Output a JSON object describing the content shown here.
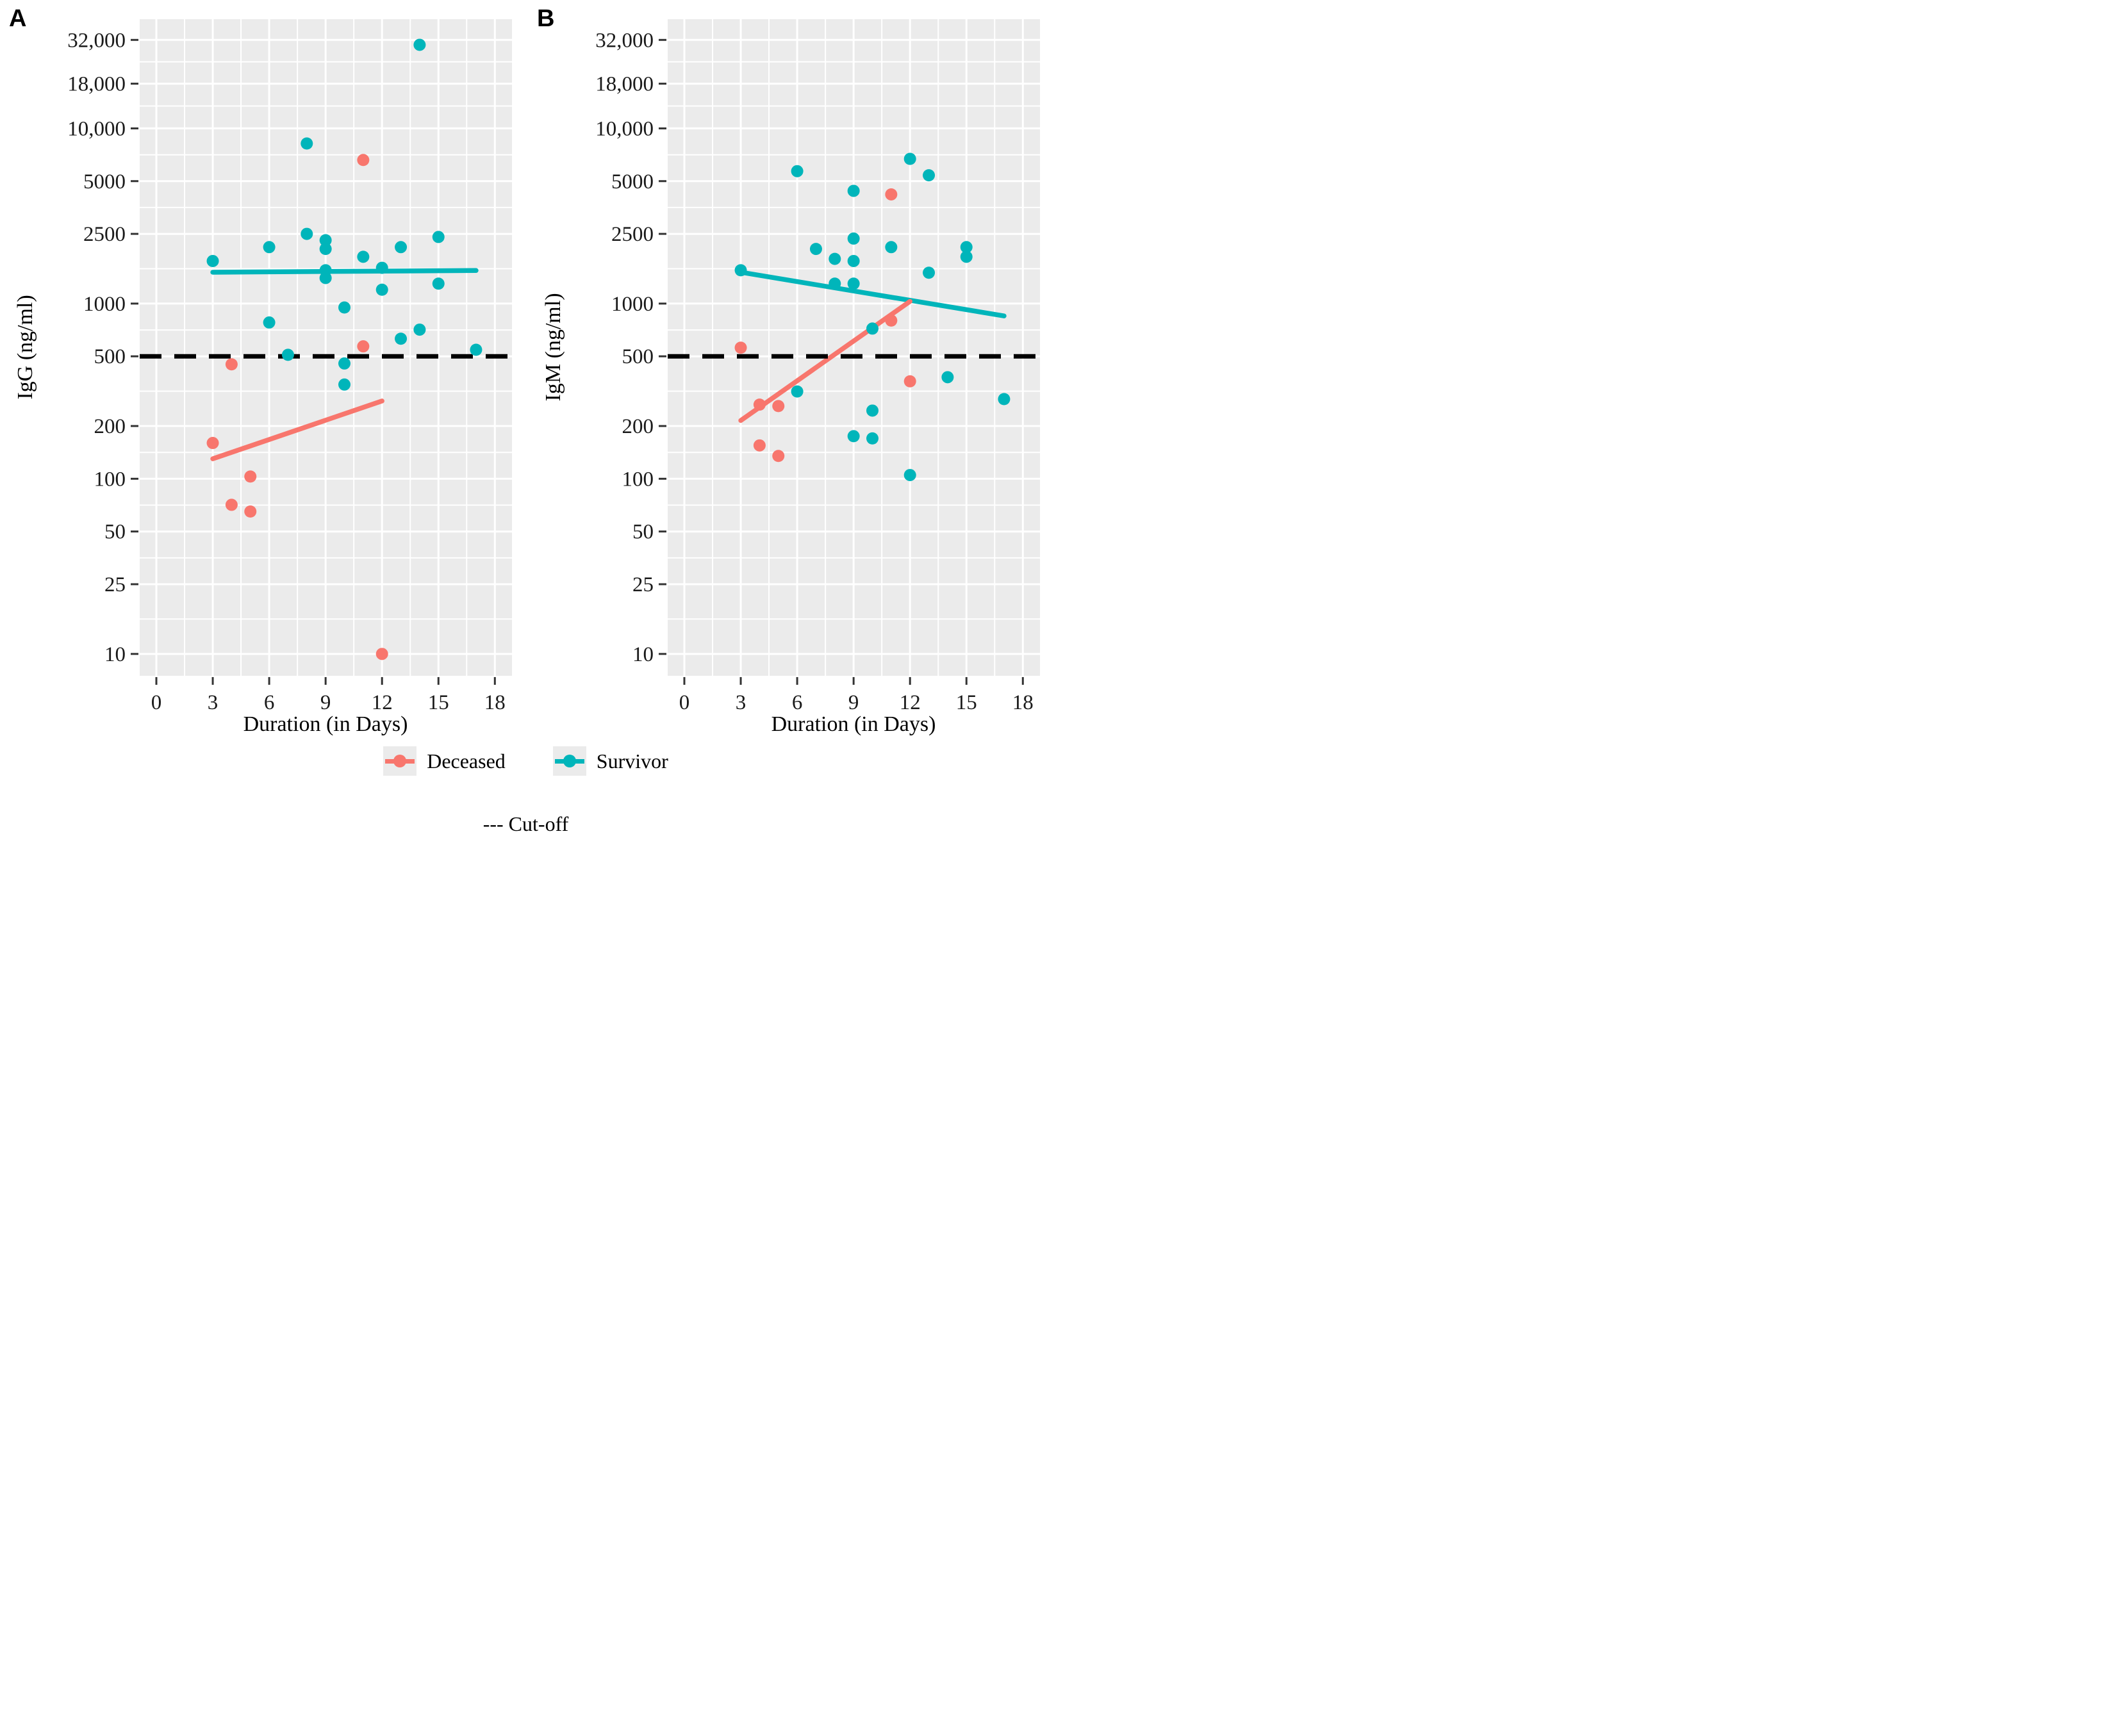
{
  "figure": {
    "panel_a_tag": "A",
    "panel_b_tag": "B"
  },
  "colors": {
    "deceased": "#F8766D",
    "survivor": "#00B5BA",
    "cutoff_line": "#000000",
    "panel_background": "#EBEBEB",
    "gridline": "#FFFFFF",
    "tick_mark": "#333333",
    "tick_label": "#1a1a1a"
  },
  "legend": {
    "items": [
      {
        "label": "Deceased",
        "color_key": "deceased"
      },
      {
        "label": "Survivor",
        "color_key": "survivor"
      }
    ]
  },
  "cutoff_note": "--- Cut-off",
  "chart_data": [
    {
      "type": "scatter",
      "panel": "A",
      "xlabel": "Duration (in Days)",
      "ylabel": "IgG (ng/ml)",
      "y_scale": "log10",
      "xlim": [
        -0.9,
        18.9
      ],
      "ylim": [
        7.5,
        42000
      ],
      "x_ticks": [
        {
          "value": 0,
          "label": "0"
        },
        {
          "value": 3,
          "label": "3"
        },
        {
          "value": 6,
          "label": "6"
        },
        {
          "value": 9,
          "label": "9"
        },
        {
          "value": 12,
          "label": "12"
        },
        {
          "value": 15,
          "label": "15"
        },
        {
          "value": 18,
          "label": "18"
        }
      ],
      "y_ticks": [
        {
          "value": 32000,
          "label": "32,000"
        },
        {
          "value": 18000,
          "label": "18,000"
        },
        {
          "value": 10000,
          "label": "10,000"
        },
        {
          "value": 5000,
          "label": "5000"
        },
        {
          "value": 2500,
          "label": "2500"
        },
        {
          "value": 1000,
          "label": "1000"
        },
        {
          "value": 500,
          "label": "500"
        },
        {
          "value": 200,
          "label": "200"
        },
        {
          "value": 100,
          "label": "100"
        },
        {
          "value": 50,
          "label": "50"
        },
        {
          "value": 25,
          "label": "25"
        },
        {
          "value": 10,
          "label": "10"
        }
      ],
      "cutoff_value": 500,
      "grid": true,
      "series": [
        {
          "name": "Survivor",
          "color_key": "survivor",
          "points": [
            [
              3,
              1750
            ],
            [
              6,
              2100
            ],
            [
              6,
              780
            ],
            [
              7,
              510
            ],
            [
              8,
              8200
            ],
            [
              8,
              2500
            ],
            [
              9,
              2300
            ],
            [
              9,
              2050
            ],
            [
              9,
              1550
            ],
            [
              9,
              1400
            ],
            [
              10,
              950
            ],
            [
              10,
              455
            ],
            [
              10,
              345
            ],
            [
              11,
              1850
            ],
            [
              12,
              1600
            ],
            [
              12,
              1200
            ],
            [
              13,
              2100
            ],
            [
              13,
              630
            ],
            [
              14,
              30000
            ],
            [
              14,
              710
            ],
            [
              15,
              2400
            ],
            [
              15,
              1300
            ],
            [
              17,
              545
            ]
          ],
          "trend": [
            [
              3,
              1510
            ],
            [
              17,
              1545
            ]
          ]
        },
        {
          "name": "Deceased",
          "color_key": "deceased",
          "points": [
            [
              3,
              160
            ],
            [
              4,
              450
            ],
            [
              4,
              71
            ],
            [
              5,
              103
            ],
            [
              5,
              65
            ],
            [
              11,
              6600
            ],
            [
              11,
              570
            ],
            [
              12,
              10
            ]
          ],
          "trend": [
            [
              3,
              130
            ],
            [
              12,
              278
            ]
          ]
        }
      ]
    },
    {
      "type": "scatter",
      "panel": "B",
      "xlabel": "Duration (in Days)",
      "ylabel": "IgM (ng/ml)",
      "y_scale": "log10",
      "xlim": [
        -0.9,
        18.9
      ],
      "ylim": [
        7.5,
        42000
      ],
      "x_ticks": [
        {
          "value": 0,
          "label": "0"
        },
        {
          "value": 3,
          "label": "3"
        },
        {
          "value": 6,
          "label": "6"
        },
        {
          "value": 9,
          "label": "9"
        },
        {
          "value": 12,
          "label": "12"
        },
        {
          "value": 15,
          "label": "15"
        },
        {
          "value": 18,
          "label": "18"
        }
      ],
      "y_ticks": [
        {
          "value": 32000,
          "label": "32,000"
        },
        {
          "value": 18000,
          "label": "18,000"
        },
        {
          "value": 10000,
          "label": "10,000"
        },
        {
          "value": 5000,
          "label": "5000"
        },
        {
          "value": 2500,
          "label": "2500"
        },
        {
          "value": 1000,
          "label": "1000"
        },
        {
          "value": 500,
          "label": "500"
        },
        {
          "value": 200,
          "label": "200"
        },
        {
          "value": 100,
          "label": "100"
        },
        {
          "value": 50,
          "label": "50"
        },
        {
          "value": 25,
          "label": "25"
        },
        {
          "value": 10,
          "label": "10"
        }
      ],
      "cutoff_value": 500,
      "grid": true,
      "series": [
        {
          "name": "Survivor",
          "color_key": "survivor",
          "points": [
            [
              3,
              1550
            ],
            [
              6,
              5700
            ],
            [
              6,
              315
            ],
            [
              7,
              2050
            ],
            [
              8,
              1800
            ],
            [
              8,
              1300
            ],
            [
              9,
              4400
            ],
            [
              9,
              2350
            ],
            [
              9,
              1750
            ],
            [
              9,
              1300
            ],
            [
              9,
              175
            ],
            [
              10,
              720
            ],
            [
              10,
              245
            ],
            [
              10,
              170
            ],
            [
              11,
              2100
            ],
            [
              12,
              6700
            ],
            [
              12,
              105
            ],
            [
              13,
              5400
            ],
            [
              13,
              1500
            ],
            [
              14,
              380
            ],
            [
              15,
              2100
            ],
            [
              15,
              1850
            ],
            [
              17,
              285
            ]
          ],
          "trend": [
            [
              3,
              1510
            ],
            [
              17,
              850
            ]
          ]
        },
        {
          "name": "Deceased",
          "color_key": "deceased",
          "points": [
            [
              3,
              560
            ],
            [
              4,
              265
            ],
            [
              4,
              155
            ],
            [
              5,
              260
            ],
            [
              5,
              135
            ],
            [
              11,
              4200
            ],
            [
              11,
              800
            ],
            [
              12,
              360
            ]
          ],
          "trend": [
            [
              3,
              215
            ],
            [
              12,
              1030
            ]
          ]
        }
      ]
    }
  ]
}
